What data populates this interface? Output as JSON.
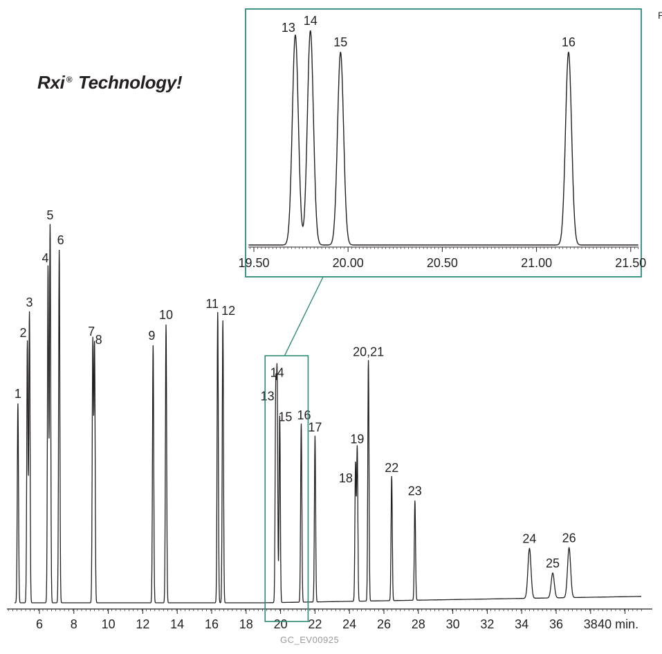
{
  "brand": {
    "text": "Rxi",
    "mark": "®",
    "suffix": " Technology!"
  },
  "footer_code": "GC_EV00925",
  "edge_text": "P",
  "accent_color": "#2b8a78",
  "trace_color": "#231f20",
  "chart_data": [
    {
      "type": "line",
      "title": "",
      "xlabel": "",
      "ylabel": "",
      "x_unit": "min.",
      "xlim": [
        4.2,
        41.0
      ],
      "ylim": [
        0,
        1
      ],
      "grid": false,
      "x_ticks": [
        6,
        8,
        10,
        12,
        14,
        16,
        18,
        20,
        22,
        24,
        26,
        28,
        30,
        32,
        34,
        36,
        38,
        40
      ],
      "x_tick_labels": [
        "6",
        "8",
        "10",
        "12",
        "14",
        "16",
        "18",
        "20",
        "22",
        "24",
        "26",
        "28",
        "30",
        "32",
        "34",
        "36",
        "38",
        "40 min."
      ],
      "zoom_window": [
        19.1,
        21.6
      ],
      "peaks": [
        {
          "label": "1",
          "rt": 4.75,
          "height": 0.48
        },
        {
          "label": "2",
          "rt": 5.3,
          "height": 0.63
        },
        {
          "label": "3",
          "rt": 5.42,
          "height": 0.7
        },
        {
          "label": "4",
          "rt": 6.5,
          "height": 0.81
        },
        {
          "label": "5",
          "rt": 6.62,
          "height": 0.91
        },
        {
          "label": "6",
          "rt": 7.15,
          "height": 0.85
        },
        {
          "label": "7",
          "rt": 9.1,
          "height": 0.63
        },
        {
          "label": "8",
          "rt": 9.2,
          "height": 0.62
        },
        {
          "label": "9",
          "rt": 12.6,
          "height": 0.62
        },
        {
          "label": "10",
          "rt": 13.35,
          "height": 0.67
        },
        {
          "label": "11",
          "rt": 16.35,
          "height": 0.7
        },
        {
          "label": "12",
          "rt": 16.65,
          "height": 0.68
        },
        {
          "label": "13",
          "rt": 19.72,
          "height": 0.5
        },
        {
          "label": "14",
          "rt": 19.8,
          "height": 0.53
        },
        {
          "label": "15",
          "rt": 19.95,
          "height": 0.45
        },
        {
          "label": "16",
          "rt": 21.2,
          "height": 0.43
        },
        {
          "label": "17",
          "rt": 22.0,
          "height": 0.4
        },
        {
          "label": "18",
          "rt": 24.35,
          "height": 0.33
        },
        {
          "label": "19",
          "rt": 24.45,
          "height": 0.37
        },
        {
          "label": "20,21",
          "rt": 25.1,
          "height": 0.58
        },
        {
          "label": "22",
          "rt": 26.45,
          "height": 0.3
        },
        {
          "label": "23",
          "rt": 27.8,
          "height": 0.24
        },
        {
          "label": "24",
          "rt": 34.45,
          "height": 0.12
        },
        {
          "label": "25",
          "rt": 35.8,
          "height": 0.06
        },
        {
          "label": "26",
          "rt": 36.75,
          "height": 0.12
        }
      ]
    },
    {
      "type": "line",
      "title": "",
      "xlim": [
        19.45,
        21.58
      ],
      "ylim": [
        0,
        1
      ],
      "grid": false,
      "x_ticks": [
        19.5,
        20.0,
        20.5,
        21.0,
        21.5
      ],
      "x_tick_labels": [
        "19.50",
        "20.00",
        "20.50",
        "21.00",
        "21.50"
      ],
      "peaks": [
        {
          "label": "13",
          "rt": 19.72,
          "height": 0.98
        },
        {
          "label": "14",
          "rt": 19.8,
          "height": 1.0
        },
        {
          "label": "15",
          "rt": 19.96,
          "height": 0.9
        },
        {
          "label": "16",
          "rt": 21.17,
          "height": 0.9
        }
      ]
    }
  ]
}
